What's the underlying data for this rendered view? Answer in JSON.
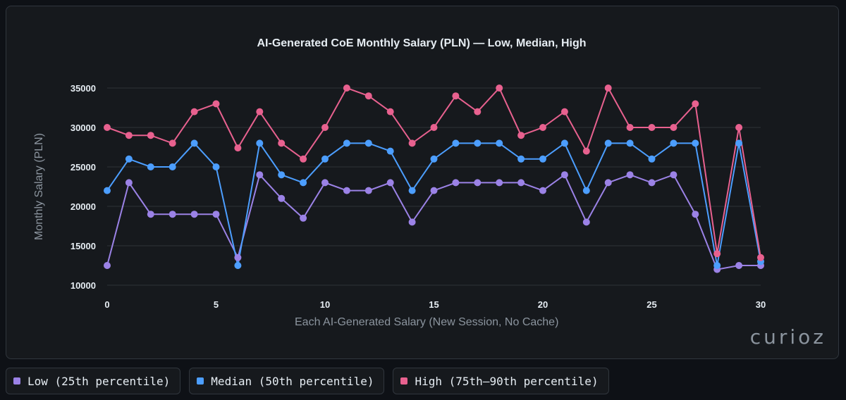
{
  "chart_data": {
    "type": "line",
    "title": "AI-Generated CoE Monthly Salary (PLN) — Low, Median, High",
    "xlabel": "Each AI-Generated Salary (New Session, No Cache)",
    "ylabel": "Monthly Salary (PLN)",
    "xlim": [
      0,
      30
    ],
    "ylim": [
      10000,
      35000
    ],
    "xticks": [
      "0",
      "5",
      "10",
      "15",
      "20",
      "25",
      "30"
    ],
    "yticks": [
      "10000",
      "15000",
      "20000",
      "25000",
      "30000",
      "35000"
    ],
    "grid": true,
    "legend_position": "bottom",
    "x": [
      0,
      1,
      2,
      3,
      4,
      5,
      6,
      7,
      8,
      9,
      10,
      11,
      12,
      13,
      14,
      15,
      16,
      17,
      18,
      19,
      20,
      21,
      22,
      23,
      24,
      25,
      26,
      27,
      28,
      29,
      30
    ],
    "series": [
      {
        "name": "Low (25th percentile)",
        "color": "#9b82e6",
        "values": [
          12500,
          23000,
          19000,
          19000,
          19000,
          19000,
          13500,
          24000,
          21000,
          18500,
          23000,
          22000,
          22000,
          23000,
          18000,
          22000,
          23000,
          23000,
          23000,
          23000,
          22000,
          24000,
          18000,
          23000,
          24000,
          23000,
          24000,
          19000,
          12000,
          12500,
          12500
        ]
      },
      {
        "name": "Median (50th percentile)",
        "color": "#4c9eff",
        "values": [
          22000,
          26000,
          25000,
          25000,
          28000,
          25000,
          12500,
          28000,
          24000,
          23000,
          26000,
          28000,
          28000,
          27000,
          22000,
          26000,
          28000,
          28000,
          28000,
          26000,
          26000,
          28000,
          22000,
          28000,
          28000,
          26000,
          28000,
          28000,
          12500,
          28000,
          13000
        ]
      },
      {
        "name": "High (75th–90th percentile)",
        "color": "#e8618f",
        "values": [
          30000,
          29000,
          29000,
          28000,
          32000,
          33000,
          27400,
          32000,
          28000,
          26000,
          30000,
          35000,
          34000,
          32000,
          28000,
          30000,
          34000,
          32000,
          35000,
          29000,
          30000,
          32000,
          27000,
          35000,
          30000,
          30000,
          30000,
          33000,
          14000,
          30000,
          13500
        ]
      }
    ]
  },
  "logo": "curioz"
}
